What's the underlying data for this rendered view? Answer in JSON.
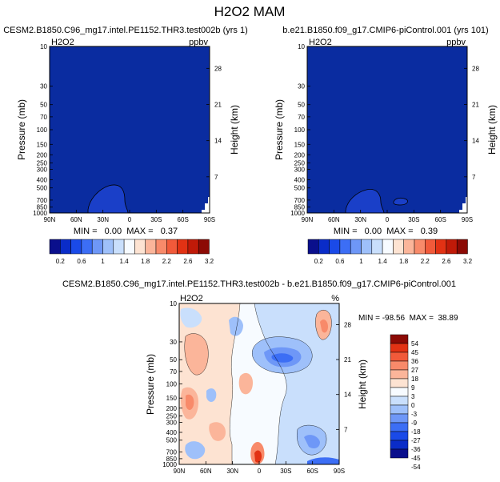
{
  "page": {
    "title": "H2O2 MAM"
  },
  "colors": {
    "background": "#ffffff",
    "field_low": "#0a2ca0",
    "field_edge": "#0a1e8c",
    "contour_line": "#000000",
    "abs_palette": [
      "#0a0f8c",
      "#0a2cc8",
      "#1a4ae8",
      "#3c6ef5",
      "#6e97f7",
      "#9ec0fa",
      "#c9dffc",
      "#f7fbff",
      "#fde3d2",
      "#fbb59a",
      "#f88a6a",
      "#f15a3a",
      "#e23214",
      "#c01a08",
      "#8c0a05"
    ],
    "diff_palette": [
      "#0a0f8c",
      "#0a2cc8",
      "#1a4ae8",
      "#3c6ef5",
      "#6e97f7",
      "#9ec0fa",
      "#c9dffc",
      "#f7fbff",
      "#fde3d2",
      "#fbb59a",
      "#f88a6a",
      "#f15a3a",
      "#e23214",
      "#8c0a05"
    ]
  },
  "chart_data": [
    {
      "type": "heatmap",
      "title": "CESM2.B1850.C96_mg17.intel.PE1152.THR3.test002b (yrs 1)",
      "left_label": "H2O2",
      "right_label": "ppbv",
      "ylabel": "Pressure (mb)",
      "ylabel_right": "Height (km)",
      "x_ticks": [
        "90N",
        "60N",
        "30N",
        "0",
        "30S",
        "60S",
        "90S"
      ],
      "y_ticks": [
        "10",
        "30",
        "50",
        "70",
        "100",
        "150",
        "200",
        "250",
        "300",
        "400",
        "500",
        "700",
        "850",
        "1000"
      ],
      "y_ticks_right": [
        "28",
        "21",
        "14",
        "7"
      ],
      "stats": "MIN =   0.00  MAX =   0.37",
      "colorbar_labels": [
        "0.2",
        "0.6",
        "1",
        "1.4",
        "1.8",
        "2.2",
        "2.6",
        "3.2"
      ],
      "min": 0.0,
      "max": 0.37
    },
    {
      "type": "heatmap",
      "title": "b.e21.B1850.f09_g17.CMIP6-piControl.001 (yrs 101)",
      "left_label": "H2O2",
      "right_label": "ppbv",
      "ylabel": "Pressure (mb)",
      "ylabel_right": "Height (km)",
      "x_ticks": [
        "90N",
        "60N",
        "30N",
        "0",
        "30S",
        "60S",
        "90S"
      ],
      "y_ticks": [
        "10",
        "30",
        "50",
        "70",
        "100",
        "150",
        "200",
        "250",
        "300",
        "400",
        "500",
        "700",
        "850",
        "1000"
      ],
      "y_ticks_right": [
        "28",
        "21",
        "14",
        "7"
      ],
      "stats": "MIN =   0.00  MAX =   0.39",
      "colorbar_labels": [
        "0.2",
        "0.6",
        "1",
        "1.4",
        "1.8",
        "2.2",
        "2.6",
        "3.2"
      ],
      "min": 0.0,
      "max": 0.39
    },
    {
      "type": "heatmap",
      "title": "CESM2.B1850.C96_mg17.intel.PE1152.THR3.test002b - b.e21.B1850.f09_g17.CMIP6-piControl.001",
      "left_label": "H2O2",
      "right_label": "%",
      "ylabel": "Pressure (mb)",
      "ylabel_right": "Height (km)",
      "x_ticks": [
        "90N",
        "60N",
        "30N",
        "0",
        "30S",
        "60S",
        "90S"
      ],
      "y_ticks": [
        "10",
        "30",
        "50",
        "70",
        "100",
        "150",
        "200",
        "250",
        "300",
        "400",
        "500",
        "700",
        "850",
        "1000"
      ],
      "y_ticks_right": [
        "28",
        "21",
        "14",
        "7"
      ],
      "stats": "MIN = -98.56  MAX =  38.89",
      "colorbar_labels": [
        "54",
        "45",
        "36",
        "27",
        "18",
        "9",
        "3",
        "0",
        "-3",
        "-9",
        "-18",
        "-27",
        "-36",
        "-45",
        "-54"
      ],
      "min": -98.56,
      "max": 38.89
    }
  ]
}
